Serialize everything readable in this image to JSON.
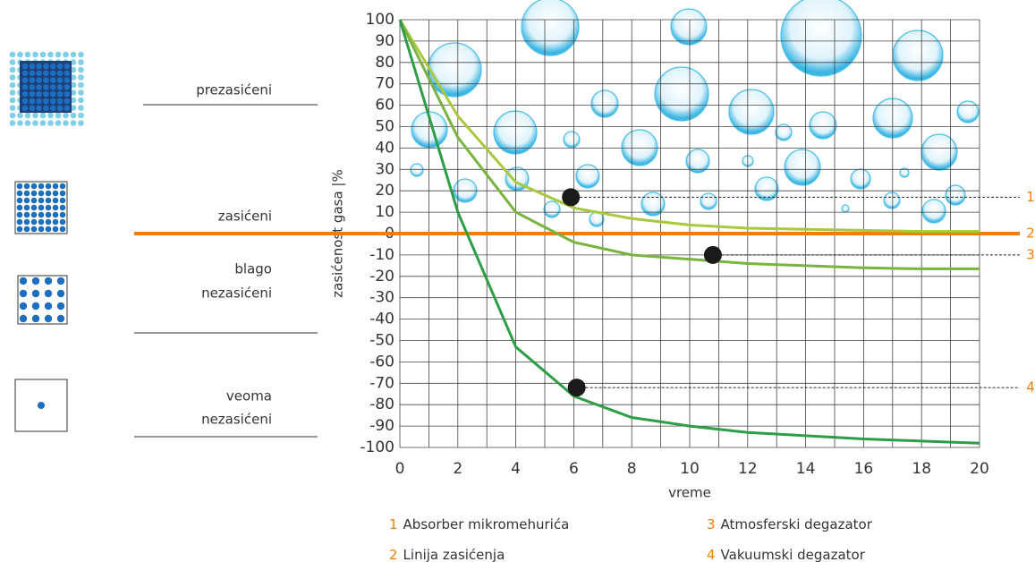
{
  "chart_data": {
    "type": "line",
    "xlabel": "vreme",
    "ylabel": "zasićenost gasa |%",
    "x": [
      0,
      2,
      4,
      6,
      8,
      10,
      12,
      14,
      16,
      18,
      20
    ],
    "xlim": [
      0,
      20
    ],
    "xticks": [
      0,
      2,
      4,
      6,
      8,
      10,
      12,
      14,
      16,
      18,
      20
    ],
    "ylim": [
      -100,
      100
    ],
    "yticks": [
      -100,
      -90,
      -80,
      -70,
      -60,
      -50,
      -40,
      -30,
      -20,
      -10,
      0,
      10,
      20,
      30,
      40,
      50,
      60,
      70,
      80,
      90,
      100
    ],
    "grid": true,
    "series": [
      {
        "number": "1",
        "name": "Absorber mikromehurića",
        "color": "#a9c83c",
        "values": [
          100,
          55,
          24,
          12,
          7,
          4,
          2.5,
          2,
          1.5,
          1,
          1
        ],
        "marker": {
          "x": 5.9,
          "y": 17
        }
      },
      {
        "number": "3",
        "name": "Atmosferski degazator",
        "color": "#78b43f",
        "values": [
          100,
          45,
          10,
          -4,
          -10,
          -12,
          -14,
          -15,
          -16,
          -16.5,
          -16.5
        ],
        "marker": {
          "x": 10.8,
          "y": -10
        }
      },
      {
        "number": "4",
        "name": "Vakuumski degazator",
        "color": "#2e9d47",
        "values": [
          100,
          10,
          -53,
          -76,
          -86,
          -90,
          -93,
          -94.5,
          -96,
          -97,
          -98
        ],
        "marker": {
          "x": 6.1,
          "y": -72
        }
      }
    ],
    "saturation_line": {
      "number": "2",
      "name": "Linija zasićenja",
      "value": 0,
      "color": "#f07f09"
    }
  },
  "states": [
    {
      "lines": [
        "prezasićeni"
      ]
    },
    {
      "lines": [
        "zasićeni"
      ]
    },
    {
      "lines": [
        "blago",
        "nezasićeni"
      ]
    },
    {
      "lines": [
        "veoma",
        "nezasićeni"
      ]
    }
  ]
}
